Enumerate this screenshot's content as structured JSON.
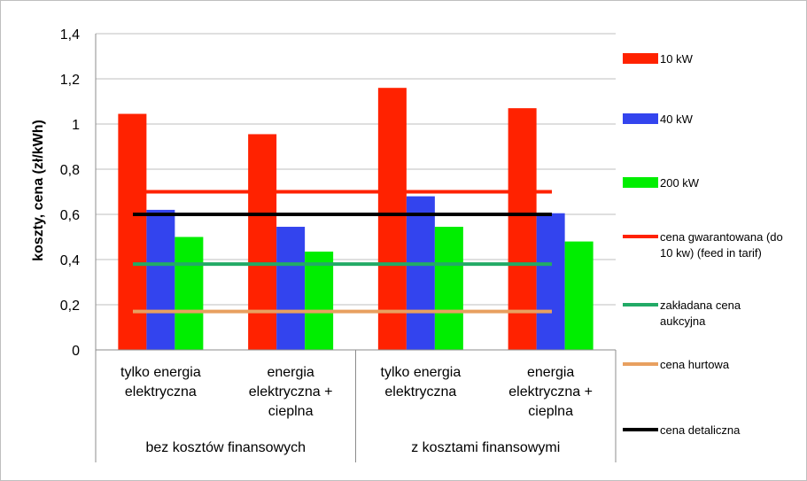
{
  "chart_data": {
    "type": "bar",
    "ylabel": "koszty, cena (zł/kWh)",
    "ylim": [
      0,
      1.4
    ],
    "ytick_labels": [
      "0",
      "0,2",
      "0,4",
      "0,6",
      "0,8",
      "1",
      "1,2",
      "1,4"
    ],
    "ytick_values": [
      0,
      0.2,
      0.4,
      0.6,
      0.8,
      1.0,
      1.2,
      1.4
    ],
    "grid": "horizontal",
    "legend_position": "right",
    "categories": [
      [
        "tylko energia",
        "elektryczna"
      ],
      [
        "energia",
        "elektryczna +",
        "cieplna"
      ],
      [
        "tylko energia",
        "elektryczna"
      ],
      [
        "energia",
        "elektryczna +",
        "cieplna"
      ]
    ],
    "groups": [
      {
        "label": "bez kosztów finansowych",
        "span": [
          0,
          1
        ]
      },
      {
        "label": "z kosztami finansowymi",
        "span": [
          2,
          3
        ]
      }
    ],
    "series": [
      {
        "name": "10 kW",
        "color": "#ff2200",
        "values": [
          1.045,
          0.955,
          1.16,
          1.07
        ]
      },
      {
        "name": "40 kW",
        "color": "#3344ee",
        "values": [
          0.62,
          0.545,
          0.68,
          0.605
        ]
      },
      {
        "name": "200 kW",
        "color": "#00ee00",
        "values": [
          0.5,
          0.435,
          0.545,
          0.48
        ]
      }
    ],
    "lines": [
      {
        "name": "cena gwarantowana (do 10 kw) (feed in tarif)",
        "color": "#ff2200",
        "value": 0.7
      },
      {
        "name": "zakładana cena aukcyjna",
        "color": "#22aa66",
        "value": 0.38
      },
      {
        "name": "cena hurtowa",
        "color": "#e8a060",
        "value": 0.17
      },
      {
        "name": "cena detaliczna",
        "color": "#000000",
        "value": 0.6
      }
    ],
    "legend_order": [
      {
        "kind": "series",
        "index": 0
      },
      {
        "kind": "series",
        "index": 1
      },
      {
        "kind": "series",
        "index": 2
      },
      {
        "kind": "line",
        "index": 0
      },
      {
        "kind": "line",
        "index": 1
      },
      {
        "kind": "line",
        "index": 2
      },
      {
        "kind": "line",
        "index": 3
      }
    ]
  }
}
